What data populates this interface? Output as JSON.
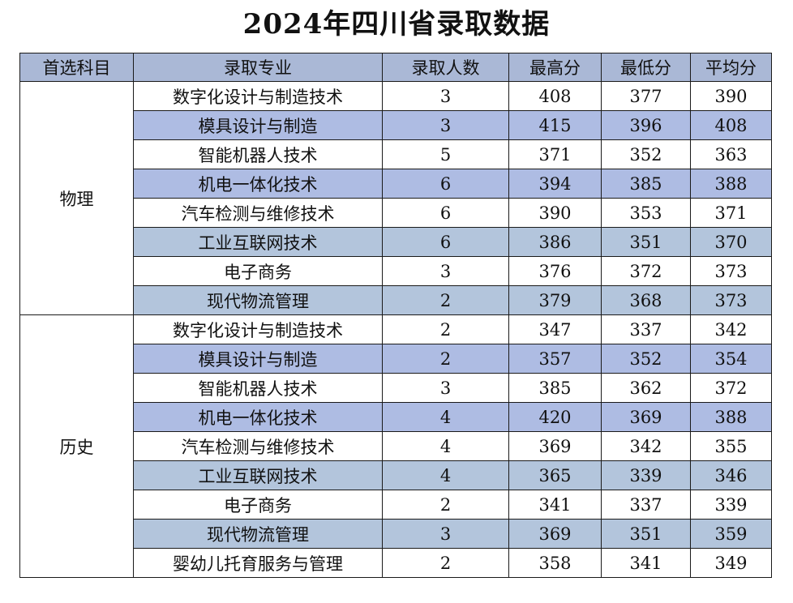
{
  "title": "2024年四川省录取数据",
  "headers": [
    "首选科目",
    "录取专业",
    "录取人数",
    "最高分",
    "最低分",
    "平均分"
  ],
  "groups": [
    {
      "subject": "物理",
      "rows": [
        {
          "major": "数字化设计与制造技术",
          "count": "3",
          "max": "408",
          "min": "377",
          "avg": "390",
          "shade": "plain"
        },
        {
          "major": "模具设计与制造",
          "count": "3",
          "max": "415",
          "min": "396",
          "avg": "408",
          "shade": "shade-a"
        },
        {
          "major": "智能机器人技术",
          "count": "5",
          "max": "371",
          "min": "352",
          "avg": "363",
          "shade": "plain"
        },
        {
          "major": "机电一体化技术",
          "count": "6",
          "max": "394",
          "min": "385",
          "avg": "388",
          "shade": "shade-a"
        },
        {
          "major": "汽车检测与维修技术",
          "count": "6",
          "max": "390",
          "min": "353",
          "avg": "371",
          "shade": "plain"
        },
        {
          "major": "工业互联网技术",
          "count": "6",
          "max": "386",
          "min": "351",
          "avg": "370",
          "shade": "shade-b"
        },
        {
          "major": "电子商务",
          "count": "3",
          "max": "376",
          "min": "372",
          "avg": "373",
          "shade": "plain"
        },
        {
          "major": "现代物流管理",
          "count": "2",
          "max": "379",
          "min": "368",
          "avg": "373",
          "shade": "shade-b"
        }
      ]
    },
    {
      "subject": "历史",
      "rows": [
        {
          "major": "数字化设计与制造技术",
          "count": "2",
          "max": "347",
          "min": "337",
          "avg": "342",
          "shade": "plain"
        },
        {
          "major": "模具设计与制造",
          "count": "2",
          "max": "357",
          "min": "352",
          "avg": "354",
          "shade": "shade-a"
        },
        {
          "major": "智能机器人技术",
          "count": "3",
          "max": "385",
          "min": "362",
          "avg": "372",
          "shade": "plain"
        },
        {
          "major": "机电一体化技术",
          "count": "4",
          "max": "420",
          "min": "369",
          "avg": "388",
          "shade": "shade-a"
        },
        {
          "major": "汽车检测与维修技术",
          "count": "4",
          "max": "369",
          "min": "342",
          "avg": "355",
          "shade": "plain"
        },
        {
          "major": "工业互联网技术",
          "count": "4",
          "max": "365",
          "min": "339",
          "avg": "346",
          "shade": "shade-b"
        },
        {
          "major": "电子商务",
          "count": "2",
          "max": "341",
          "min": "337",
          "avg": "339",
          "shade": "plain"
        },
        {
          "major": "现代物流管理",
          "count": "3",
          "max": "369",
          "min": "351",
          "avg": "359",
          "shade": "shade-b"
        },
        {
          "major": "婴幼儿托育服务与管理",
          "count": "2",
          "max": "358",
          "min": "341",
          "avg": "349",
          "shade": "plain"
        }
      ]
    }
  ],
  "colors": {
    "header_bg": "#aab8d6",
    "row_shade_a": "#aebce3",
    "row_shade_b": "#b3c5dc",
    "border": "#1a1a1a"
  }
}
